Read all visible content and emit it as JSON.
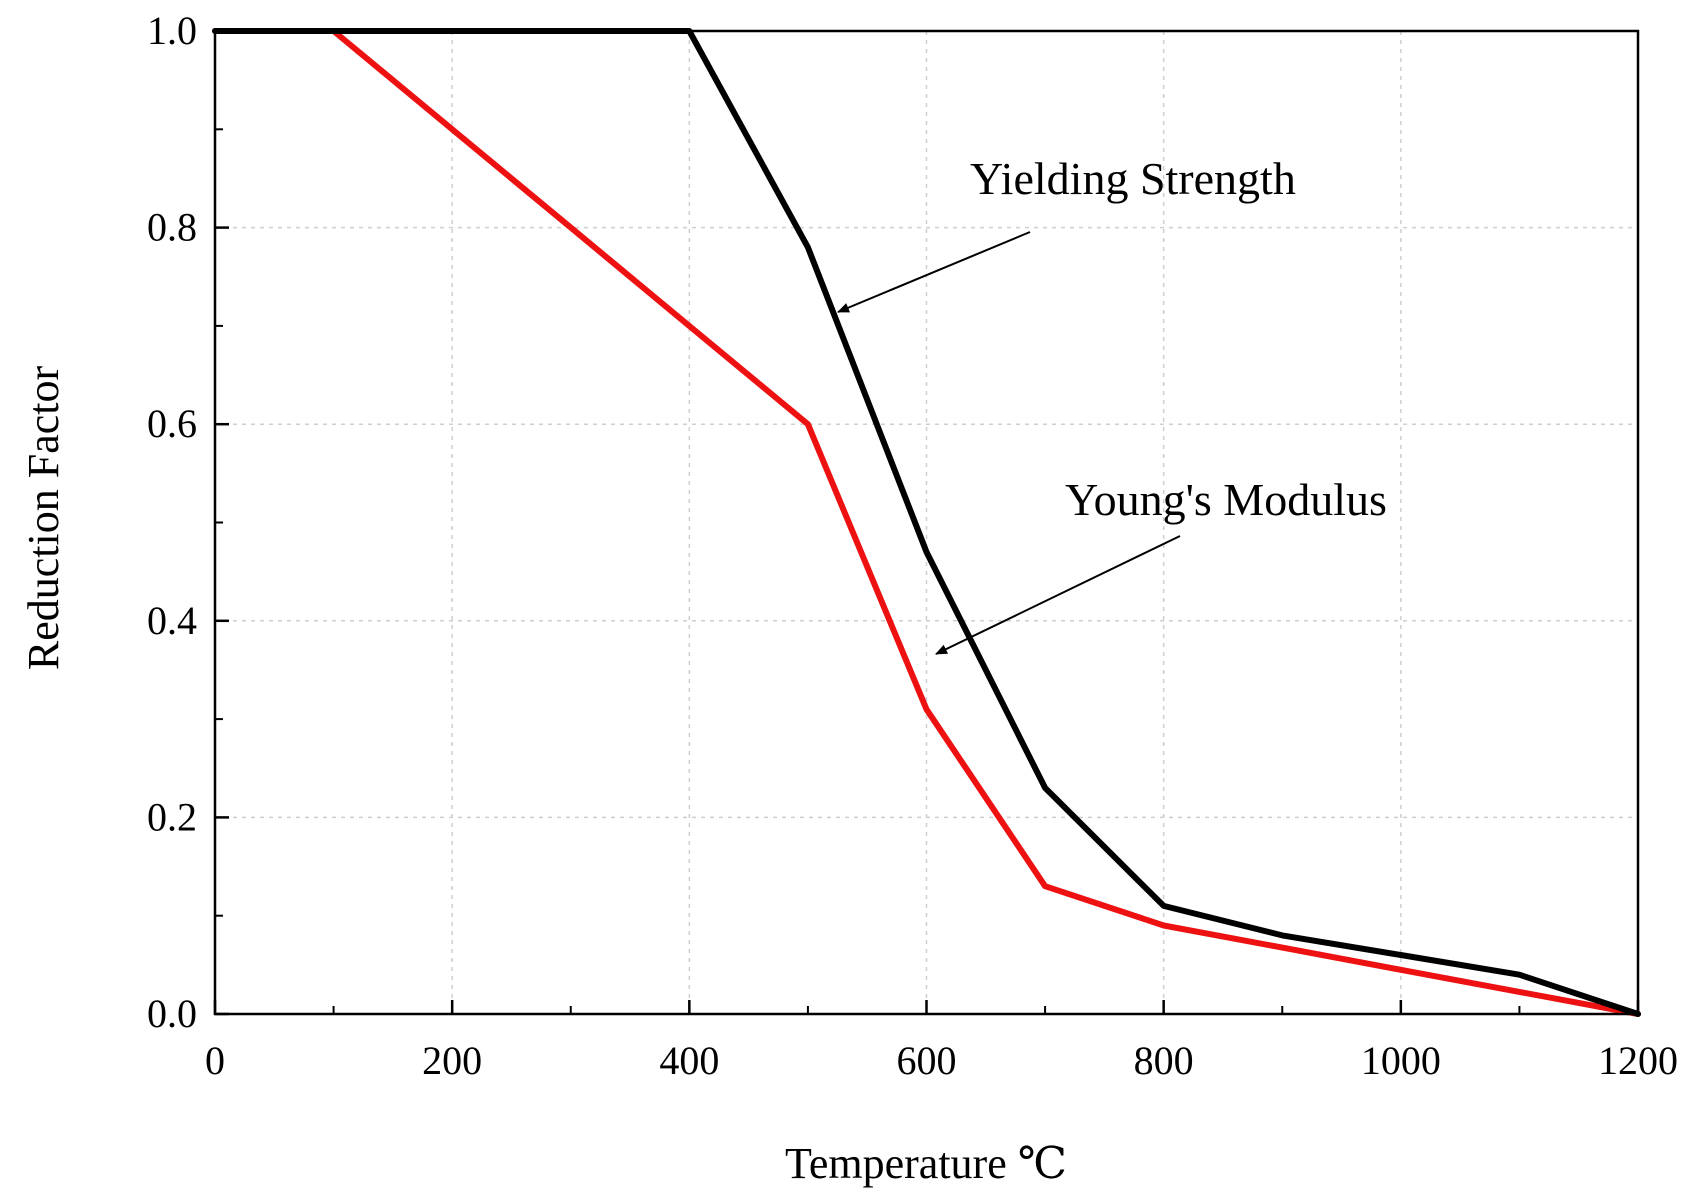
{
  "chart_data": {
    "type": "line",
    "title": "",
    "xlabel": "Temperature ℃",
    "ylabel": "Reduction Factor",
    "xlim": [
      0,
      1200
    ],
    "ylim": [
      0,
      1.0
    ],
    "x_ticks": [
      0,
      200,
      400,
      600,
      800,
      1000,
      1200
    ],
    "x_tick_labels": [
      "0",
      "200",
      "400",
      "600",
      "800",
      "1000",
      "1200"
    ],
    "y_ticks": [
      0,
      0.2,
      0.4,
      0.6,
      0.8,
      1.0
    ],
    "y_tick_labels": [
      "0.0",
      "0.2",
      "0.4",
      "0.6",
      "0.8",
      "1.0"
    ],
    "grid": true,
    "legend": "none",
    "series": [
      {
        "name": "Yielding Strength",
        "color": "#000000",
        "x": [
          0,
          100,
          400,
          500,
          600,
          700,
          800,
          900,
          1000,
          1100,
          1200
        ],
        "y": [
          1.0,
          1.0,
          1.0,
          0.78,
          0.47,
          0.23,
          0.11,
          0.08,
          0.06,
          0.04,
          0.0
        ]
      },
      {
        "name": "Young's Modulus",
        "color": "#ee1111",
        "x": [
          0,
          100,
          200,
          300,
          400,
          500,
          600,
          700,
          800,
          900,
          1000,
          1100,
          1200
        ],
        "y": [
          1.0,
          1.0,
          0.9,
          0.8,
          0.7,
          0.6,
          0.31,
          0.13,
          0.09,
          0.0675,
          0.045,
          0.0225,
          0.0
        ]
      }
    ],
    "annotations": [
      {
        "text": "Yielding Strength",
        "series": "Yielding Strength",
        "points_to": [
          528,
          0.71
        ]
      },
      {
        "text": "Young's Modulus",
        "series": "Young's Modulus",
        "points_to": [
          605,
          0.37
        ]
      }
    ]
  }
}
